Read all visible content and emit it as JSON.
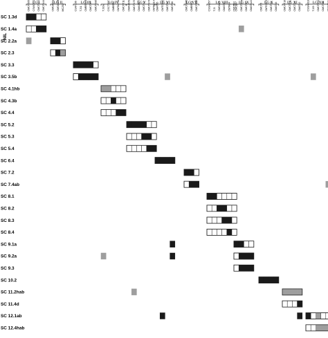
{
  "axis_label": "NIL",
  "colors": {
    "introgressed": "#1a1a1a",
    "heterozygous": "#9e9e9e",
    "background": "#ffffff",
    "border": "#222222"
  },
  "groups": [
    {
      "label": "LG I",
      "markers": [
        "CMCT505",
        "CSWCT22B",
        "CMCTN57",
        "CMCTN44"
      ]
    },
    {
      "label": "LG II",
      "markers": [
        "CMGA36a",
        "CMGA108",
        "MC252"
      ]
    },
    {
      "label": "LG III",
      "markers": [
        "CSAT196",
        "TJ31",
        "CMBR128",
        "CMCTN7",
        "CMCTN86"
      ]
    },
    {
      "label": "LG IV",
      "markers": [
        "TJ10a",
        "CSCTT071",
        "CMBR52",
        "CMTA170a",
        "CMCTT116"
      ]
    },
    {
      "label": "LG V",
      "markers": [
        "CMAGN51",
        "CMCTN76",
        "CMAGN73",
        "CMCTN2",
        "CMCTN74",
        "CMTAB14"
      ]
    },
    {
      "label": "LG VI",
      "markers": [
        "CMAT35",
        "CMTCN30",
        "CMCT94",
        "CMCT88"
      ]
    },
    {
      "label": "LG VII",
      "markers": [
        "CMCTN56",
        "CMBR41",
        "CMCTN15"
      ]
    },
    {
      "label": "LG VIII",
      "markers": [
        "CSGA057",
        "TJ3",
        "CMGA41",
        "CMAT40",
        "CMTA04",
        "CMCT94"
      ]
    },
    {
      "label": "LG IX",
      "markers": [
        "CMCT47",
        "CMCT17a",
        "CMCT87",
        "CMATN22"
      ]
    },
    {
      "label": "LG X",
      "markers": [
        "CMCT5",
        "CMTCN71",
        "CMCT43",
        "CMAT16"
      ]
    },
    {
      "label": "LG XI",
      "markers": [
        "CMCTT160b",
        "CMCTT118",
        "CMCT24",
        "CMAT12"
      ]
    },
    {
      "label": "LG XII",
      "markers": [
        "CSGA4110",
        "TJ29",
        "CMCTN42",
        "CMCT4a",
        "CMAGN34"
      ]
    }
  ],
  "rows": [
    {
      "label": "SC 1.3d",
      "cells": {
        "0": "BBWW"
      }
    },
    {
      "label": "SC 1.4a",
      "cells": {
        "0": "WWBB",
        "8": "-G"
      }
    },
    {
      "label": "SC 2.2a",
      "cells": {
        "0": "G",
        "1": "BBW"
      }
    },
    {
      "label": "SC 2.3",
      "cells": {
        "1": "WBG"
      }
    },
    {
      "label": "SC 3.3",
      "cells": {
        "2": "BBBBW"
      }
    },
    {
      "label": "SC 3.5b",
      "cells": {
        "2": "WBBBB",
        "5": "--G",
        "11": "-G"
      }
    },
    {
      "label": "SC 4.1hb",
      "cells": {
        "3": "GGWWW"
      }
    },
    {
      "label": "SC 4.3b",
      "cells": {
        "3": "WWBWW"
      }
    },
    {
      "label": "SC 4.4",
      "cells": {
        "3": "WWWBB"
      }
    },
    {
      "label": "SC 5.2",
      "cells": {
        "4": "BBBBWW"
      }
    },
    {
      "label": "SC 5.3",
      "cells": {
        "4": "WWWBBW"
      }
    },
    {
      "label": "SC 5.4",
      "cells": {
        "4": "WWWWBB"
      }
    },
    {
      "label": "SC 6.4",
      "cells": {
        "5": "BBBB"
      }
    },
    {
      "label": "SC 7.2",
      "cells": {
        "6": "BBW"
      }
    },
    {
      "label": "SC 7.4ab",
      "cells": {
        "6": "WBB",
        "11": "----G"
      }
    },
    {
      "label": "SC 8.1",
      "cells": {
        "7": "BBWWWW"
      }
    },
    {
      "label": "SC 8.2",
      "cells": {
        "7": "WWBBWW"
      }
    },
    {
      "label": "SC 8.3",
      "cells": {
        "7": "WWWBBW"
      }
    },
    {
      "label": "SC 8.4",
      "cells": {
        "7": "WWWWBW"
      }
    },
    {
      "label": "SC 9.1a",
      "cells": {
        "5": "---B",
        "8": "BBWW"
      }
    },
    {
      "label": "SC 9.2a",
      "cells": {
        "3": "G",
        "5": "---B",
        "8": "WBBB"
      }
    },
    {
      "label": "SC 9.3",
      "cells": {
        "8": "WBBB"
      }
    },
    {
      "label": "SC 10.2",
      "cells": {
        "9": "BBBB"
      }
    },
    {
      "label": "SC 11.2hab",
      "cells": {
        "4": "-G",
        "10": "GGGG"
      }
    },
    {
      "label": "SC 11.4d",
      "cells": {
        "10": "WWWB"
      }
    },
    {
      "label": "SC 12.1ab",
      "cells": {
        "5": "-B",
        "10": "---B",
        "11": "BWGWW"
      }
    },
    {
      "label": "SC 12.4hab",
      "cells": {
        "11": "WWGGG"
      }
    }
  ]
}
